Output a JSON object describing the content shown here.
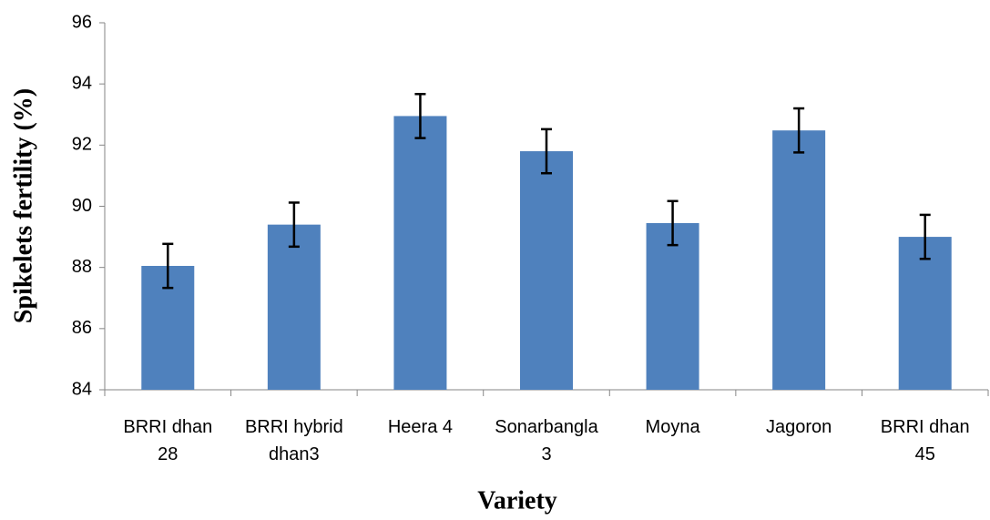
{
  "chart_data": {
    "type": "bar",
    "x_label": "Variety",
    "y_label": "Spikelets fertility (%)",
    "categories": [
      "BRRI dhan 28",
      "BRRI hybrid dhan3",
      "Heera 4",
      "Sonarbangla 3",
      "Moyna",
      "Jagoron",
      "BRRI dhan 45"
    ],
    "values": [
      88.05,
      89.4,
      92.95,
      91.8,
      89.45,
      92.48,
      89.0
    ],
    "errors": [
      0.72,
      0.72,
      0.72,
      0.72,
      0.72,
      0.72,
      0.72
    ],
    "color": "#4f81bd",
    "ylim": [
      84,
      96
    ],
    "yticks": [
      84,
      86,
      88,
      90,
      92,
      94,
      96
    ],
    "grid": false
  }
}
